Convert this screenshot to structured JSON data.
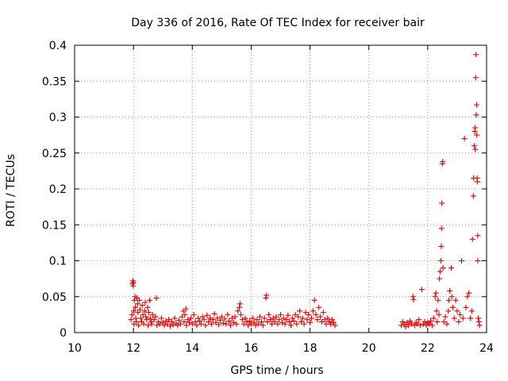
{
  "chart_data": {
    "type": "scatter",
    "title": "Day 336 of 2016, Rate Of TEC Index for receiver bair",
    "xlabel": "GPS time / hours",
    "ylabel": "ROTI / TECUs",
    "xlim": [
      10,
      24
    ],
    "ylim": [
      0,
      0.4
    ],
    "x_ticks": [
      10,
      12,
      14,
      16,
      18,
      20,
      22,
      24
    ],
    "x_tick_labels": [
      "10",
      "12",
      "14",
      "16",
      "18",
      "20",
      "22",
      "24"
    ],
    "y_ticks": [
      0,
      0.05,
      0.1,
      0.15,
      0.2,
      0.25,
      0.3,
      0.35,
      0.4
    ],
    "y_tick_labels": [
      "0",
      "0.05",
      "0.1",
      "0.15",
      "0.2",
      "0.25",
      "0.3",
      "0.35",
      "0.4"
    ],
    "grid": true,
    "marker": "plus",
    "color": "#e00000",
    "series": [
      {
        "points": [
          [
            11.92,
            0.018
          ],
          [
            11.95,
            0.025
          ],
          [
            11.97,
            0.068
          ],
          [
            11.98,
            0.072
          ],
          [
            11.99,
            0.065
          ],
          [
            12.0,
            0.07
          ],
          [
            12.01,
            0.03
          ],
          [
            12.02,
            0.012
          ],
          [
            12.03,
            0.045
          ],
          [
            12.05,
            0.05
          ],
          [
            12.06,
            0.035
          ],
          [
            12.08,
            0.02
          ],
          [
            12.1,
            0.015
          ],
          [
            12.12,
            0.048
          ],
          [
            12.14,
            0.04
          ],
          [
            12.15,
            0.028
          ],
          [
            12.17,
            0.01
          ],
          [
            12.2,
            0.045
          ],
          [
            12.22,
            0.032
          ],
          [
            12.25,
            0.02
          ],
          [
            12.28,
            0.015
          ],
          [
            12.3,
            0.038
          ],
          [
            12.32,
            0.025
          ],
          [
            12.35,
            0.012
          ],
          [
            12.38,
            0.03
          ],
          [
            12.4,
            0.042
          ],
          [
            12.42,
            0.022
          ],
          [
            12.45,
            0.018
          ],
          [
            12.48,
            0.035
          ],
          [
            12.5,
            0.01
          ],
          [
            12.52,
            0.028
          ],
          [
            12.55,
            0.045
          ],
          [
            12.57,
            0.02
          ],
          [
            12.6,
            0.015
          ],
          [
            12.62,
            0.012
          ],
          [
            12.65,
            0.025
          ],
          [
            12.7,
            0.018
          ],
          [
            12.75,
            0.022
          ],
          [
            12.78,
            0.048
          ],
          [
            12.8,
            0.01
          ],
          [
            12.85,
            0.015
          ],
          [
            12.9,
            0.012
          ],
          [
            12.95,
            0.02
          ],
          [
            13.0,
            0.014
          ],
          [
            13.05,
            0.01
          ],
          [
            13.1,
            0.016
          ],
          [
            13.15,
            0.012
          ],
          [
            13.2,
            0.018
          ],
          [
            13.25,
            0.009
          ],
          [
            13.3,
            0.015
          ],
          [
            13.35,
            0.011
          ],
          [
            13.4,
            0.02
          ],
          [
            13.45,
            0.013
          ],
          [
            13.5,
            0.01
          ],
          [
            13.55,
            0.017
          ],
          [
            13.6,
            0.012
          ],
          [
            13.65,
            0.022
          ],
          [
            13.7,
            0.03
          ],
          [
            13.72,
            0.015
          ],
          [
            13.75,
            0.025
          ],
          [
            13.78,
            0.033
          ],
          [
            13.8,
            0.01
          ],
          [
            13.85,
            0.018
          ],
          [
            13.9,
            0.014
          ],
          [
            13.95,
            0.02
          ],
          [
            14.0,
            0.012
          ],
          [
            14.05,
            0.025
          ],
          [
            14.1,
            0.015
          ],
          [
            14.15,
            0.01
          ],
          [
            14.2,
            0.02
          ],
          [
            14.25,
            0.016
          ],
          [
            14.3,
            0.012
          ],
          [
            14.35,
            0.022
          ],
          [
            14.4,
            0.018
          ],
          [
            14.45,
            0.01
          ],
          [
            14.5,
            0.024
          ],
          [
            14.55,
            0.015
          ],
          [
            14.6,
            0.02
          ],
          [
            14.65,
            0.012
          ],
          [
            14.7,
            0.018
          ],
          [
            14.75,
            0.026
          ],
          [
            14.8,
            0.014
          ],
          [
            14.85,
            0.02
          ],
          [
            14.9,
            0.011
          ],
          [
            14.95,
            0.017
          ],
          [
            15.0,
            0.022
          ],
          [
            15.05,
            0.013
          ],
          [
            15.1,
            0.019
          ],
          [
            15.15,
            0.012
          ],
          [
            15.2,
            0.025
          ],
          [
            15.25,
            0.016
          ],
          [
            15.3,
            0.01
          ],
          [
            15.35,
            0.02
          ],
          [
            15.4,
            0.014
          ],
          [
            15.45,
            0.022
          ],
          [
            15.5,
            0.012
          ],
          [
            15.55,
            0.03
          ],
          [
            15.6,
            0.035
          ],
          [
            15.62,
            0.04
          ],
          [
            15.65,
            0.025
          ],
          [
            15.7,
            0.018
          ],
          [
            15.75,
            0.012
          ],
          [
            15.8,
            0.02
          ],
          [
            15.85,
            0.015
          ],
          [
            15.9,
            0.01
          ],
          [
            15.95,
            0.016
          ],
          [
            16.0,
            0.012
          ],
          [
            16.05,
            0.02
          ],
          [
            16.1,
            0.014
          ],
          [
            16.15,
            0.01
          ],
          [
            16.2,
            0.018
          ],
          [
            16.25,
            0.012
          ],
          [
            16.3,
            0.022
          ],
          [
            16.35,
            0.015
          ],
          [
            16.4,
            0.01
          ],
          [
            16.45,
            0.02
          ],
          [
            16.5,
            0.048
          ],
          [
            16.52,
            0.052
          ],
          [
            16.55,
            0.015
          ],
          [
            16.6,
            0.025
          ],
          [
            16.65,
            0.018
          ],
          [
            16.7,
            0.012
          ],
          [
            16.75,
            0.02
          ],
          [
            16.8,
            0.015
          ],
          [
            16.85,
            0.022
          ],
          [
            16.9,
            0.012
          ],
          [
            16.95,
            0.018
          ],
          [
            17.0,
            0.025
          ],
          [
            17.05,
            0.014
          ],
          [
            17.1,
            0.02
          ],
          [
            17.15,
            0.012
          ],
          [
            17.2,
            0.018
          ],
          [
            17.25,
            0.024
          ],
          [
            17.3,
            0.015
          ],
          [
            17.35,
            0.01
          ],
          [
            17.4,
            0.02
          ],
          [
            17.45,
            0.016
          ],
          [
            17.5,
            0.025
          ],
          [
            17.55,
            0.012
          ],
          [
            17.6,
            0.022
          ],
          [
            17.65,
            0.03
          ],
          [
            17.7,
            0.015
          ],
          [
            17.75,
            0.02
          ],
          [
            17.8,
            0.012
          ],
          [
            17.85,
            0.028
          ],
          [
            17.9,
            0.018
          ],
          [
            17.95,
            0.025
          ],
          [
            18.0,
            0.014
          ],
          [
            18.05,
            0.02
          ],
          [
            18.1,
            0.03
          ],
          [
            18.15,
            0.045
          ],
          [
            18.2,
            0.025
          ],
          [
            18.25,
            0.018
          ],
          [
            18.3,
            0.035
          ],
          [
            18.35,
            0.022
          ],
          [
            18.4,
            0.015
          ],
          [
            18.45,
            0.028
          ],
          [
            18.5,
            0.018
          ],
          [
            18.55,
            0.012
          ],
          [
            18.6,
            0.02
          ],
          [
            18.65,
            0.015
          ],
          [
            18.7,
            0.012
          ],
          [
            18.75,
            0.018
          ],
          [
            18.8,
            0.014
          ],
          [
            18.85,
            0.01
          ],
          [
            21.1,
            0.01
          ],
          [
            21.15,
            0.015
          ],
          [
            21.2,
            0.012
          ],
          [
            21.25,
            0.008
          ],
          [
            21.3,
            0.014
          ],
          [
            21.35,
            0.01
          ],
          [
            21.4,
            0.016
          ],
          [
            21.45,
            0.012
          ],
          [
            21.5,
            0.05
          ],
          [
            21.52,
            0.046
          ],
          [
            21.55,
            0.01
          ],
          [
            21.6,
            0.014
          ],
          [
            21.65,
            0.012
          ],
          [
            21.7,
            0.018
          ],
          [
            21.75,
            0.01
          ],
          [
            21.8,
            0.06
          ],
          [
            21.85,
            0.012
          ],
          [
            21.9,
            0.015
          ],
          [
            21.95,
            0.01
          ],
          [
            22.0,
            0.014
          ],
          [
            22.05,
            0.012
          ],
          [
            22.1,
            0.016
          ],
          [
            22.15,
            0.01
          ],
          [
            22.2,
            0.02
          ],
          [
            22.25,
            0.05
          ],
          [
            22.28,
            0.055
          ],
          [
            22.3,
            0.03
          ],
          [
            22.32,
            0.015
          ],
          [
            22.35,
            0.045
          ],
          [
            22.38,
            0.025
          ],
          [
            22.4,
            0.075
          ],
          [
            22.42,
            0.085
          ],
          [
            22.45,
            0.1
          ],
          [
            22.46,
            0.12
          ],
          [
            22.47,
            0.145
          ],
          [
            22.48,
            0.18
          ],
          [
            22.5,
            0.235
          ],
          [
            22.51,
            0.238
          ],
          [
            22.52,
            0.09
          ],
          [
            22.55,
            0.015
          ],
          [
            22.6,
            0.022
          ],
          [
            22.65,
            0.012
          ],
          [
            22.7,
            0.03
          ],
          [
            22.72,
            0.045
          ],
          [
            22.75,
            0.058
          ],
          [
            22.8,
            0.09
          ],
          [
            22.82,
            0.05
          ],
          [
            22.85,
            0.035
          ],
          [
            22.9,
            0.02
          ],
          [
            22.95,
            0.045
          ],
          [
            23.0,
            0.03
          ],
          [
            23.05,
            0.015
          ],
          [
            23.1,
            0.025
          ],
          [
            23.15,
            0.1
          ],
          [
            23.2,
            0.02
          ],
          [
            23.25,
            0.27
          ],
          [
            23.3,
            0.035
          ],
          [
            23.35,
            0.05
          ],
          [
            23.4,
            0.055
          ],
          [
            23.45,
            0.02
          ],
          [
            23.5,
            0.03
          ],
          [
            23.52,
            0.13
          ],
          [
            23.55,
            0.19
          ],
          [
            23.56,
            0.215
          ],
          [
            23.58,
            0.26
          ],
          [
            23.6,
            0.28
          ],
          [
            23.61,
            0.285
          ],
          [
            23.62,
            0.255
          ],
          [
            23.63,
            0.355
          ],
          [
            23.64,
            0.387
          ],
          [
            23.65,
            0.303
          ],
          [
            23.66,
            0.317
          ],
          [
            23.67,
            0.275
          ],
          [
            23.68,
            0.215
          ],
          [
            23.69,
            0.21
          ],
          [
            23.7,
            0.1
          ],
          [
            23.7,
            0.135
          ],
          [
            23.72,
            0.02
          ],
          [
            23.74,
            0.015
          ],
          [
            23.76,
            0.01
          ]
        ]
      }
    ]
  }
}
